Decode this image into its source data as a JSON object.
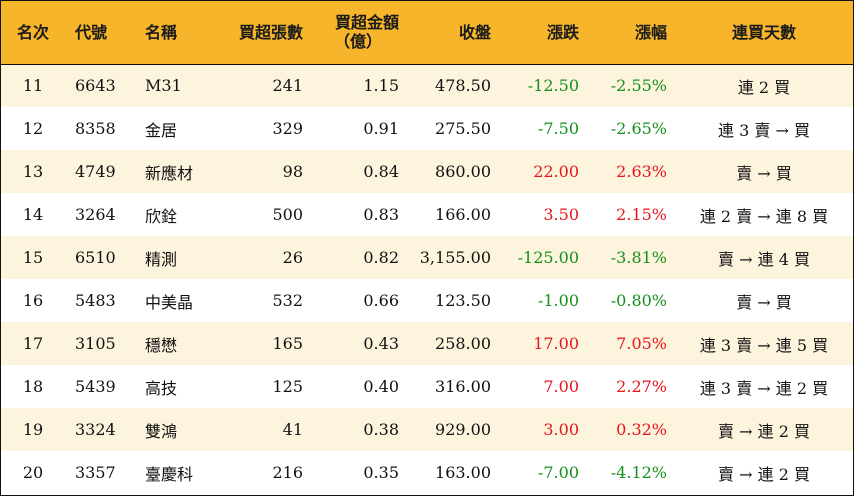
{
  "columns": {
    "rank": "名次",
    "code": "代號",
    "name": "名稱",
    "volume": "買超張數",
    "amount_line1": "買超金額",
    "amount_line2": "（億）",
    "close": "收盤",
    "change": "漲跌",
    "pct": "漲幅",
    "days": "連買天數"
  },
  "colors": {
    "header_bg": "#f6b52a",
    "stripe_bg": "#fdf4dd",
    "up": "#e8141c",
    "down": "#16901c"
  },
  "rows": [
    {
      "rank": "11",
      "code": "6643",
      "name": "M31",
      "volume": "241",
      "amount": "1.15",
      "close": "478.50",
      "change": "-12.50",
      "pct": "-2.55%",
      "days": "連 2 買",
      "dir": "down"
    },
    {
      "rank": "12",
      "code": "8358",
      "name": "金居",
      "volume": "329",
      "amount": "0.91",
      "close": "275.50",
      "change": "-7.50",
      "pct": "-2.65%",
      "days": "連 3 賣 → 買",
      "dir": "down"
    },
    {
      "rank": "13",
      "code": "4749",
      "name": "新應材",
      "volume": "98",
      "amount": "0.84",
      "close": "860.00",
      "change": "22.00",
      "pct": "2.63%",
      "days": "賣 → 買",
      "dir": "up"
    },
    {
      "rank": "14",
      "code": "3264",
      "name": "欣銓",
      "volume": "500",
      "amount": "0.83",
      "close": "166.00",
      "change": "3.50",
      "pct": "2.15%",
      "days": "連 2 賣 → 連 8 買",
      "dir": "up"
    },
    {
      "rank": "15",
      "code": "6510",
      "name": "精測",
      "volume": "26",
      "amount": "0.82",
      "close": "3,155.00",
      "change": "-125.00",
      "pct": "-3.81%",
      "days": "賣 → 連 4 買",
      "dir": "down"
    },
    {
      "rank": "16",
      "code": "5483",
      "name": "中美晶",
      "volume": "532",
      "amount": "0.66",
      "close": "123.50",
      "change": "-1.00",
      "pct": "-0.80%",
      "days": "賣 → 買",
      "dir": "down"
    },
    {
      "rank": "17",
      "code": "3105",
      "name": "穩懋",
      "volume": "165",
      "amount": "0.43",
      "close": "258.00",
      "change": "17.00",
      "pct": "7.05%",
      "days": "連 3 賣 → 連 5 買",
      "dir": "up"
    },
    {
      "rank": "18",
      "code": "5439",
      "name": "高技",
      "volume": "125",
      "amount": "0.40",
      "close": "316.00",
      "change": "7.00",
      "pct": "2.27%",
      "days": "連 3 賣 → 連 2 買",
      "dir": "up"
    },
    {
      "rank": "19",
      "code": "3324",
      "name": "雙鴻",
      "volume": "41",
      "amount": "0.38",
      "close": "929.00",
      "change": "3.00",
      "pct": "0.32%",
      "days": "賣 → 連 2 買",
      "dir": "up"
    },
    {
      "rank": "20",
      "code": "3357",
      "name": "臺慶科",
      "volume": "216",
      "amount": "0.35",
      "close": "163.00",
      "change": "-7.00",
      "pct": "-4.12%",
      "days": "賣 → 連 2 買",
      "dir": "down"
    }
  ]
}
